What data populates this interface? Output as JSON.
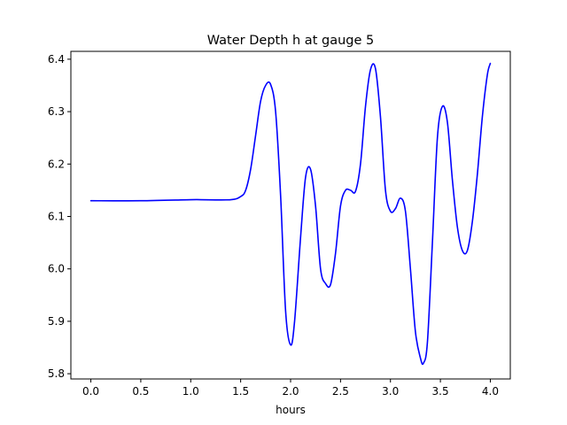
{
  "chart_data": {
    "type": "line",
    "title": "Water Depth h at gauge 5",
    "xlabel": "hours",
    "ylabel": "",
    "xlim": [
      -0.2,
      4.2
    ],
    "ylim": [
      5.79,
      6.415
    ],
    "xticks": [
      0.0,
      0.5,
      1.0,
      1.5,
      2.0,
      2.5,
      3.0,
      3.5,
      4.0
    ],
    "xtick_labels": [
      "0.0",
      "0.5",
      "1.0",
      "1.5",
      "2.0",
      "2.5",
      "3.0",
      "3.5",
      "4.0"
    ],
    "yticks": [
      5.8,
      5.9,
      6.0,
      6.1,
      6.2,
      6.3,
      6.4
    ],
    "ytick_labels": [
      "5.8",
      "5.9",
      "6.0",
      "6.1",
      "6.2",
      "6.3",
      "6.4"
    ],
    "grid": false,
    "series": [
      {
        "color": "#0000ff",
        "x": [
          0.0,
          0.5,
          1.0,
          1.1,
          1.4,
          1.5,
          1.55,
          1.6,
          1.65,
          1.7,
          1.75,
          1.8,
          1.85,
          1.9,
          1.95,
          2.0,
          2.04,
          2.1,
          2.15,
          2.2,
          2.25,
          2.3,
          2.35,
          2.4,
          2.45,
          2.5,
          2.55,
          2.6,
          2.65,
          2.7,
          2.75,
          2.8,
          2.85,
          2.9,
          2.95,
          3.0,
          3.05,
          3.1,
          3.15,
          3.2,
          3.25,
          3.3,
          3.33,
          3.37,
          3.42,
          3.47,
          3.52,
          3.57,
          3.62,
          3.67,
          3.72,
          3.77,
          3.82,
          3.87,
          3.92,
          3.97,
          4.0
        ],
        "y": [
          6.13,
          6.13,
          6.132,
          6.132,
          6.132,
          6.138,
          6.15,
          6.19,
          6.255,
          6.32,
          6.35,
          6.352,
          6.3,
          6.14,
          5.92,
          5.855,
          5.9,
          6.06,
          6.175,
          6.19,
          6.12,
          6.0,
          5.972,
          5.97,
          6.03,
          6.12,
          6.15,
          6.15,
          6.148,
          6.2,
          6.31,
          6.38,
          6.382,
          6.29,
          6.15,
          6.11,
          6.115,
          6.135,
          6.11,
          6.0,
          5.88,
          5.83,
          5.82,
          5.86,
          6.05,
          6.25,
          6.31,
          6.28,
          6.17,
          6.08,
          6.035,
          6.035,
          6.09,
          6.18,
          6.29,
          6.37,
          6.392
        ]
      }
    ]
  }
}
